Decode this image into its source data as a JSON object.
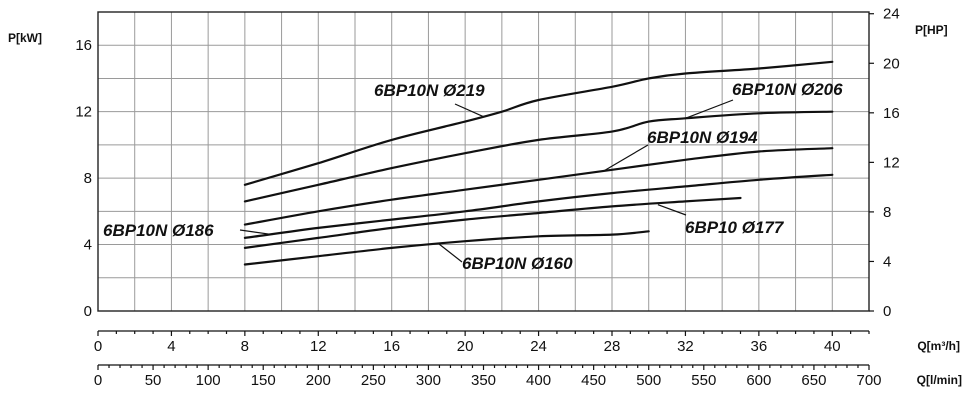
{
  "chart_data": {
    "type": "line",
    "left_axis": {
      "label": "P[kW]",
      "ticks": [
        "0",
        "4",
        "8",
        "12",
        "16"
      ],
      "range": [
        0,
        18
      ]
    },
    "right_axis": {
      "label": "P[HP]",
      "ticks": [
        "0",
        "4",
        "8",
        "12",
        "16",
        "20",
        "24"
      ],
      "range": [
        0,
        24.14
      ]
    },
    "x_axis_m3h": {
      "label": "Q[m³/h]",
      "ticks": [
        "0",
        "4",
        "8",
        "12",
        "16",
        "20",
        "24",
        "28",
        "32",
        "36",
        "40"
      ],
      "range": [
        0,
        42
      ]
    },
    "x_axis_lmin": {
      "label": "Q[l/min]",
      "ticks": [
        "0",
        "50",
        "100",
        "150",
        "200",
        "250",
        "300",
        "350",
        "400",
        "450",
        "500",
        "550",
        "600",
        "650",
        "700"
      ],
      "range": [
        0,
        700
      ]
    },
    "grid": true,
    "series": [
      {
        "name": "6BP10N Ø219",
        "x": [
          8,
          12,
          16,
          20,
          22,
          24,
          28,
          30,
          32,
          36,
          40
        ],
        "y": [
          7.6,
          8.9,
          10.3,
          11.4,
          12.0,
          12.7,
          13.5,
          14.0,
          14.3,
          14.6,
          15.0
        ]
      },
      {
        "name": "6BP10N Ø206",
        "x": [
          8,
          12,
          16,
          20,
          24,
          28,
          30,
          32,
          36,
          40
        ],
        "y": [
          6.6,
          7.6,
          8.6,
          9.5,
          10.3,
          10.8,
          11.4,
          11.6,
          11.9,
          12.0
        ]
      },
      {
        "name": "6BP10N Ø194",
        "x": [
          8,
          12,
          16,
          20,
          24,
          28,
          32,
          36,
          40
        ],
        "y": [
          5.2,
          6.0,
          6.7,
          7.3,
          7.9,
          8.5,
          9.1,
          9.6,
          9.8
        ]
      },
      {
        "name": "6BP10N Ø186",
        "x": [
          8,
          12,
          16,
          20,
          24,
          28,
          32,
          36,
          40
        ],
        "y": [
          4.4,
          5.0,
          5.5,
          6.0,
          6.6,
          7.1,
          7.5,
          7.9,
          8.2
        ]
      },
      {
        "name": "6BP10 Ø177",
        "x": [
          8,
          12,
          16,
          20,
          24,
          28,
          32,
          35
        ],
        "y": [
          3.8,
          4.4,
          5.0,
          5.5,
          5.9,
          6.3,
          6.6,
          6.8
        ]
      },
      {
        "name": "6BP10N Ø160",
        "x": [
          8,
          12,
          16,
          20,
          24,
          28,
          30
        ],
        "y": [
          2.8,
          3.3,
          3.8,
          4.2,
          4.5,
          4.6,
          4.8
        ]
      }
    ]
  }
}
